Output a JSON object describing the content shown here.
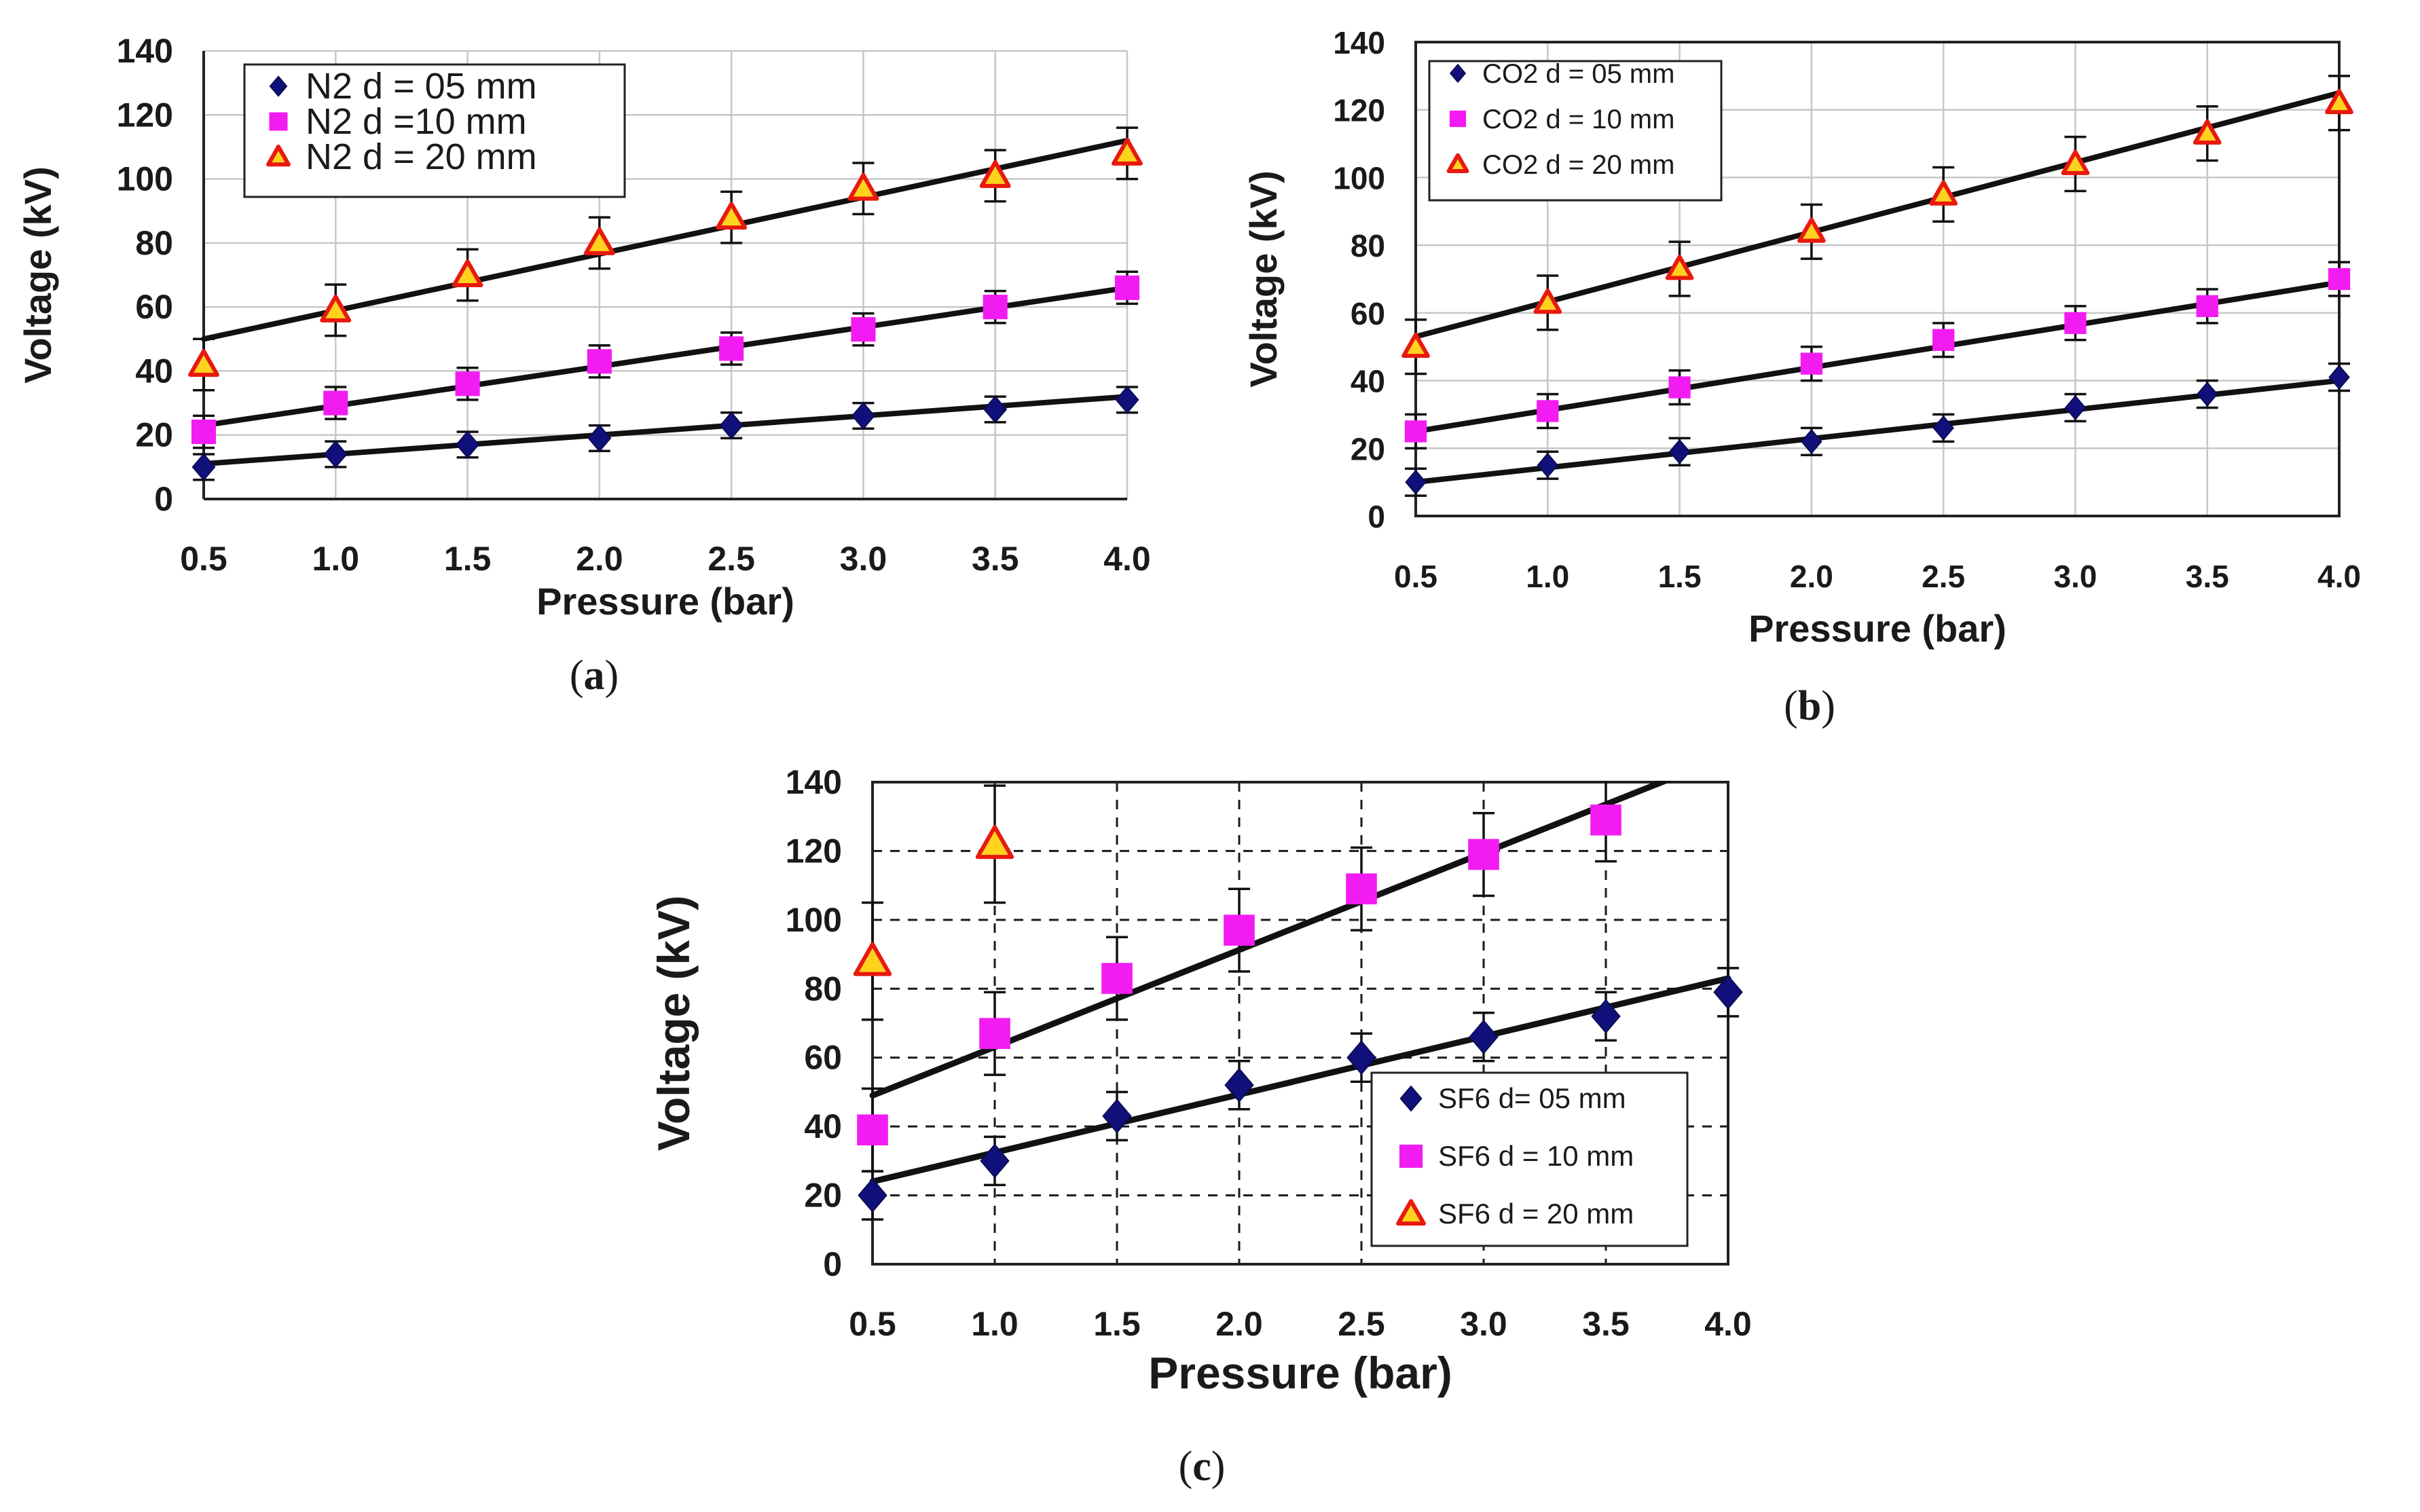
{
  "chart_data": [
    {
      "id": "a",
      "type": "scatter",
      "panel_label": "a",
      "xlabel": "Pressure (bar)",
      "ylabel": "Voltage (kV)",
      "xlim": [
        0.5,
        4.0
      ],
      "ylim": [
        0,
        140
      ],
      "x_ticks": [
        "0.5",
        "1.0",
        "1.5",
        "2.0",
        "2.5",
        "3.0",
        "3.5",
        "4.0"
      ],
      "y_ticks": [
        "0",
        "20",
        "40",
        "60",
        "80",
        "100",
        "120",
        "140"
      ],
      "grid": "solid",
      "legend_position": "top-left",
      "x": [
        0.5,
        1.0,
        1.5,
        2.0,
        2.5,
        3.0,
        3.5,
        4.0
      ],
      "series": [
        {
          "name": "N2 d = 05 mm",
          "marker": "diamond",
          "color": "#10107a",
          "values": [
            10,
            14,
            17,
            19,
            23,
            26,
            28,
            31
          ],
          "error": 4,
          "fit": [
            11,
            32
          ]
        },
        {
          "name": "N2 d =10 mm",
          "marker": "square",
          "color": "#f21cf2",
          "values": [
            21,
            30,
            36,
            43,
            47,
            53,
            60,
            66
          ],
          "error": 5,
          "fit": [
            23,
            66
          ]
        },
        {
          "name": "N2 d = 20 mm",
          "marker": "triangle",
          "color": "#ffd21e",
          "values": [
            42,
            59,
            70,
            80,
            88,
            97,
            101,
            108
          ],
          "error": 8,
          "fit": [
            50,
            112
          ]
        }
      ]
    },
    {
      "id": "b",
      "type": "scatter",
      "panel_label": "b",
      "xlabel": "Pressure (bar)",
      "ylabel": "Voltage (kV)",
      "xlim": [
        0.5,
        4.0
      ],
      "ylim": [
        0,
        140
      ],
      "x_ticks": [
        "0.5",
        "1.0",
        "1.5",
        "2.0",
        "2.5",
        "3.0",
        "3.5",
        "4.0"
      ],
      "y_ticks": [
        "0",
        "20",
        "40",
        "60",
        "80",
        "100",
        "120",
        "140"
      ],
      "grid": "solid",
      "legend_position": "top-left",
      "x": [
        0.5,
        1.0,
        1.5,
        2.0,
        2.5,
        3.0,
        3.5,
        4.0
      ],
      "series": [
        {
          "name": "CO2 d = 05 mm",
          "marker": "diamond",
          "color": "#10107a",
          "values": [
            10,
            15,
            19,
            22,
            26,
            32,
            36,
            41
          ],
          "error": 4,
          "fit": [
            10,
            40
          ]
        },
        {
          "name": "CO2 d = 10 mm",
          "marker": "square",
          "color": "#f21cf2",
          "values": [
            25,
            31,
            38,
            45,
            52,
            57,
            62,
            70
          ],
          "error": 5,
          "fit": [
            25,
            69
          ]
        },
        {
          "name": "CO2 d = 20 mm",
          "marker": "triangle",
          "color": "#ffd21e",
          "values": [
            50,
            63,
            73,
            84,
            95,
            104,
            113,
            122
          ],
          "error": 8,
          "fit": [
            53,
            125
          ]
        }
      ]
    },
    {
      "id": "c",
      "type": "scatter",
      "panel_label": "c",
      "xlabel": "Pressure (bar)",
      "ylabel": "Voltage (kV)",
      "xlim": [
        0.5,
        4.0
      ],
      "ylim": [
        0,
        140
      ],
      "x_ticks": [
        "0.5",
        "1.0",
        "1.5",
        "2.0",
        "2.5",
        "3.0",
        "3.5",
        "4.0"
      ],
      "y_ticks": [
        "0",
        "20",
        "40",
        "60",
        "80",
        "100",
        "120",
        "140"
      ],
      "grid": "dashed",
      "legend_position": "bottom-right",
      "x": [
        0.5,
        1.0,
        1.5,
        2.0,
        2.5,
        3.0,
        3.5,
        4.0
      ],
      "series": [
        {
          "name": "SF6 d= 05 mm",
          "marker": "diamond",
          "color": "#10107a",
          "x": [
            0.5,
            1.0,
            1.5,
            2.0,
            2.5,
            3.0,
            3.5,
            4.0
          ],
          "values": [
            20,
            30,
            43,
            52,
            60,
            66,
            72,
            79
          ],
          "error": 7,
          "fit_x": [
            0.5,
            4.0
          ],
          "fit": [
            24,
            83
          ]
        },
        {
          "name": "SF6 d = 10 mm",
          "marker": "square",
          "color": "#f21cf2",
          "x": [
            0.5,
            1.0,
            1.5,
            2.0,
            2.5,
            3.0,
            3.5
          ],
          "values": [
            39,
            67,
            83,
            97,
            109,
            119,
            129
          ],
          "error": 12,
          "fit_x": [
            0.5,
            3.8
          ],
          "fit": [
            49,
            142
          ]
        },
        {
          "name": "SF6 d = 20 mm",
          "marker": "triangle",
          "color": "#ffd21e",
          "x": [
            0.5,
            1.0
          ],
          "values": [
            88,
            122
          ],
          "error": 17,
          "fit_x": [],
          "fit": []
        }
      ]
    }
  ]
}
